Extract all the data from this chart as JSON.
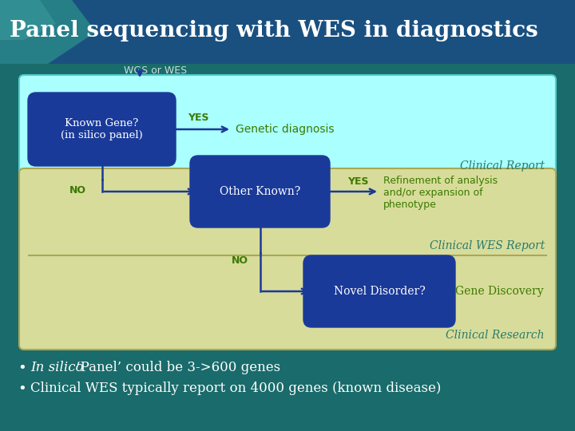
{
  "title": "Panel sequencing with WES in diagnostics",
  "title_color": "#ffffff",
  "bg_color": "#1a6b6b",
  "bg_top_color": "#1a5f7a",
  "title_bar_color": "#1a5080",
  "box1_label": "Known Gene?\n(in silico panel)",
  "box2_label": "Other Known?",
  "box3_label": "Novel Disorder?",
  "box_color": "#1a3a9a",
  "box_text_color": "#ffffff",
  "panel1_bg": "#aaffff",
  "panel2_bg": "#d8dc9a",
  "wgs_label": "WGS or WES",
  "yes1_label": "YES",
  "yes1_text": "Genetic diagnosis",
  "report1_label": "Clinical Report",
  "no1_label": "NO",
  "yes2_label": "YES",
  "yes2_text": "Refinement of analysis\nand/or expansion of\nphenotype",
  "report2_label": "Clinical WES Report",
  "no2_label": "NO",
  "report3_label": "Clinical Research",
  "gene_discovery_label": "Gene Discovery",
  "bullet1_italic": "In silico",
  "bullet1_rest": " ‘Panel’ could be 3->600 genes",
  "bullet2": "Clinical WES typically report on 4000 genes (known disease)",
  "arrow_color": "#1a3a9a",
  "yes_color": "#3a7a00",
  "report_color": "#2a7a6a",
  "no_color": "#3a7a00",
  "wgs_color": "#ccdddd",
  "bullet_color": "#ffffff"
}
